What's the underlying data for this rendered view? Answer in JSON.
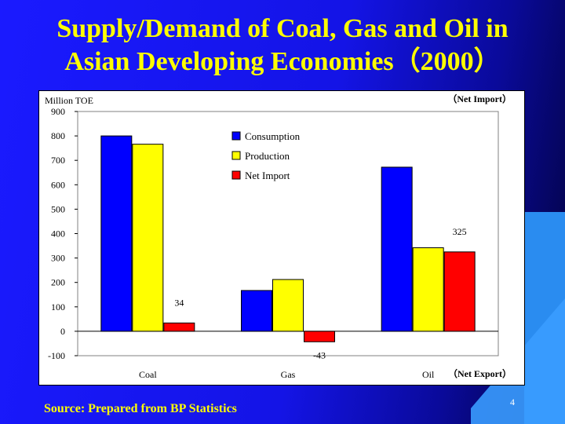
{
  "slide": {
    "title_line1": "Supply/Demand of Coal, Gas and Oil in",
    "title_line2": "Asian Developing Economies（2000）",
    "source": "Source: Prepared from BP Statistics",
    "page_number": "4",
    "colors": {
      "background": "#1414e6",
      "title": "#ffff00",
      "consumption": "#0000ff",
      "production": "#ffff00",
      "net_import": "#ff0000"
    }
  },
  "chart_data": {
    "type": "bar",
    "categories": [
      "Coal",
      "Gas",
      "Oil"
    ],
    "ylabel": "Million TOE",
    "ylim": [
      -100,
      900
    ],
    "yticks": [
      900,
      800,
      700,
      600,
      500,
      400,
      300,
      200,
      100,
      0,
      -100
    ],
    "series": [
      {
        "name": "Consumption",
        "color": "#0000ff",
        "values": [
          800,
          167,
          672
        ]
      },
      {
        "name": "Production",
        "color": "#ffff00",
        "values": [
          766,
          212,
          342
        ]
      },
      {
        "name": "Net Import",
        "color": "#ff0000",
        "values": [
          34,
          -43,
          325
        ]
      }
    ],
    "data_labels": [
      "34",
      "-43",
      "325"
    ],
    "annotations": {
      "net_import": "（Net Import）",
      "net_export": "（Net Export）"
    },
    "legend_position": "top-center",
    "grid": false
  }
}
